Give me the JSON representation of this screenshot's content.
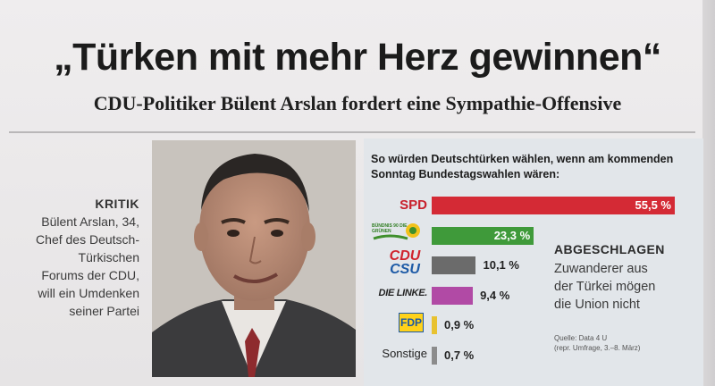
{
  "headline": "„Türken mit mehr Herz gewinnen“",
  "subheadline": "CDU-Politiker Bülent Arslan fordert eine Sympathie-Offensive",
  "caption": {
    "kicker": "KRITIK",
    "lines": [
      "Bülent Arslan, 34,",
      "Chef des Deutsch-",
      "Türkischen",
      "Forums der CDU,",
      "will ein Umdenken",
      "seiner Partei"
    ]
  },
  "chart_data": {
    "type": "bar",
    "title": "So würden Deutschtürken wählen, wenn am kommenden Sonntag Bundestagswahlen wären:",
    "categories": [
      "SPD",
      "Bündnis 90 Die Grünen",
      "CDU CSU",
      "DIE LINKE.",
      "FDP",
      "Sonstige"
    ],
    "values": [
      55.5,
      23.3,
      10.1,
      9.4,
      0.9,
      0.7
    ],
    "value_labels": [
      "55,5 %",
      "23,3 %",
      "10,1 %",
      "9,4 %",
      "0,9 %",
      "0,7 %"
    ],
    "row_labels": [
      "SPD",
      "",
      "",
      "DIE LINKE.",
      "",
      "Sonstige"
    ],
    "logo_texts": {
      "gruene": "BÜNDNIS 90 DIE GRÜNEN",
      "cdu": "CDU",
      "csu": "CSU",
      "fdp": "FDP"
    },
    "colors": [
      "#d42a35",
      "#3f9a3a",
      "#6b6b6b",
      "#b14aa5",
      "#e8c230",
      "#8c8c8c"
    ],
    "xlim": [
      0,
      55.5
    ]
  },
  "side": {
    "title": "ABGESCHLAGEN",
    "lines": [
      "Zuwanderer aus",
      "der Türkei mögen",
      "die Union nicht"
    ]
  },
  "source": {
    "line1": "Quelle: Data 4 U",
    "line2": "(repr. Umfrage, 3.–8. März)"
  }
}
